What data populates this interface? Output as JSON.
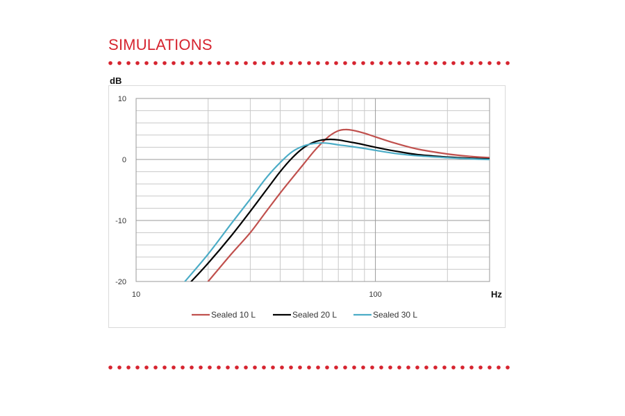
{
  "page": {
    "section_title": "SIMULATIONS",
    "accent_color": "#d6242f"
  },
  "chart_data": {
    "type": "line",
    "ylabel": "dB",
    "xlabel": "Hz",
    "x_scale": "log",
    "xlim": [
      10,
      300
    ],
    "ylim": [
      -20,
      10
    ],
    "x_ticks": [
      10,
      100
    ],
    "x_tick_labels": [
      "10",
      "100"
    ],
    "y_ticks": [
      10,
      0,
      -10,
      -20
    ],
    "y_tick_labels": [
      "10",
      "0",
      "-10",
      "-20"
    ],
    "grid": true,
    "legend_position": "bottom",
    "series": [
      {
        "name": "Sealed 10 L",
        "color": "#c0504d",
        "x": [
          20,
          25,
          30,
          35,
          40,
          45,
          50,
          55,
          60,
          65,
          70,
          75,
          80,
          90,
          100,
          120,
          150,
          200,
          250,
          300
        ],
        "y": [
          -20,
          -15.5,
          -12,
          -8.5,
          -5.5,
          -3,
          -0.8,
          1.2,
          2.8,
          4,
          4.7,
          4.9,
          4.8,
          4.3,
          3.7,
          2.7,
          1.7,
          0.9,
          0.5,
          0.3
        ]
      },
      {
        "name": "Sealed 20 L",
        "color": "#000000",
        "x": [
          17,
          20,
          25,
          30,
          35,
          40,
          45,
          50,
          55,
          60,
          65,
          70,
          80,
          90,
          100,
          120,
          150,
          200,
          250,
          300
        ],
        "y": [
          -20,
          -17,
          -12.5,
          -8.5,
          -5,
          -2,
          0.3,
          1.9,
          2.8,
          3.2,
          3.3,
          3.2,
          2.8,
          2.4,
          2,
          1.4,
          0.8,
          0.4,
          0.2,
          0.1
        ]
      },
      {
        "name": "Sealed 30 L",
        "color": "#4bacc6",
        "x": [
          16,
          20,
          25,
          30,
          35,
          40,
          45,
          50,
          55,
          60,
          65,
          70,
          80,
          90,
          100,
          120,
          150,
          200,
          250,
          300
        ],
        "y": [
          -20,
          -15.5,
          -10.5,
          -6.5,
          -3,
          -0.5,
          1.3,
          2.2,
          2.6,
          2.7,
          2.6,
          2.4,
          2.1,
          1.8,
          1.5,
          1,
          0.6,
          0.3,
          0.1,
          0
        ]
      }
    ]
  }
}
